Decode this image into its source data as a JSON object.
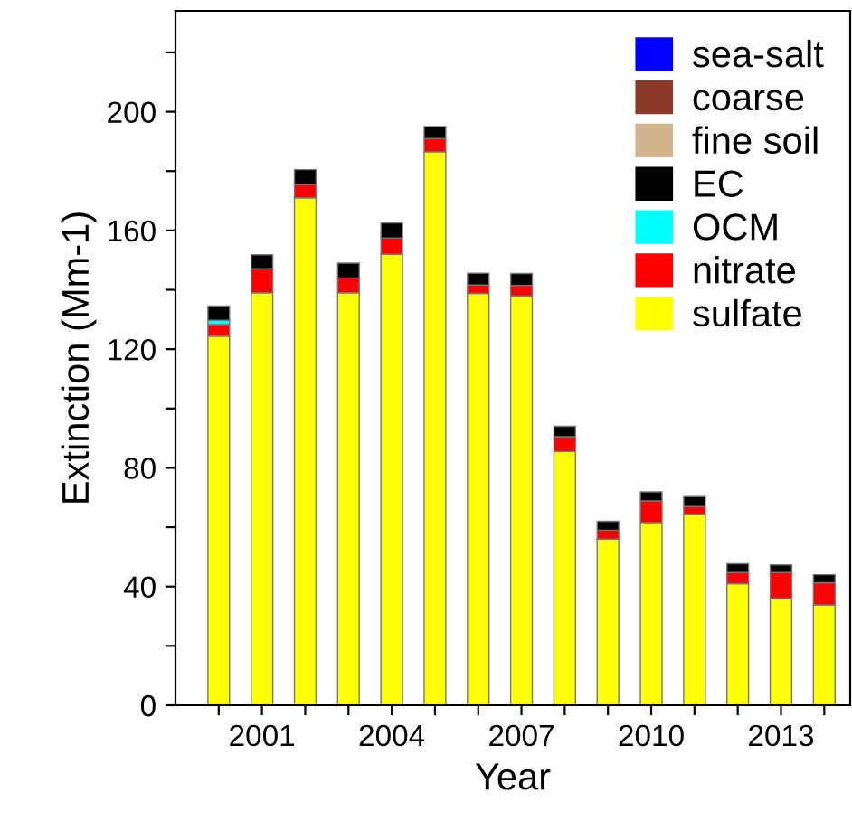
{
  "chart_data": {
    "type": "bar",
    "stacked": true,
    "xlabel": "Year",
    "ylabel": "Extinction (Mm-1)",
    "x": [
      2000,
      2001,
      2002,
      2003,
      2004,
      2005,
      2006,
      2007,
      2008,
      2009,
      2010,
      2011,
      2012,
      2013,
      2014
    ],
    "series": [
      {
        "name": "sulfate",
        "color": "#ffff00",
        "values": [
          124.4,
          139,
          171,
          139,
          152,
          186.5,
          138.8,
          138,
          85.5,
          56,
          61.6,
          64.2,
          41,
          36,
          33.8
        ]
      },
      {
        "name": "nitrate",
        "color": "#ff0000",
        "values": [
          3.9,
          8.1,
          4.5,
          5,
          5.5,
          4.5,
          2.8,
          3.5,
          5,
          3,
          7.3,
          2.8,
          3.7,
          8.7,
          7.5
        ]
      },
      {
        "name": "OCM",
        "color": "#00ffff",
        "values": [
          1.4,
          null,
          null,
          null,
          null,
          null,
          null,
          null,
          null,
          null,
          null,
          null,
          null,
          null,
          null
        ]
      },
      {
        "name": "EC",
        "color": "#000000",
        "values": [
          4.8,
          4.7,
          5,
          5,
          5,
          4,
          4,
          4,
          3.5,
          3,
          3,
          3.3,
          3,
          2.6,
          2.7
        ]
      },
      {
        "name": "fine soil",
        "color": "#d2b48c",
        "values": [
          null,
          null,
          null,
          null,
          null,
          null,
          null,
          null,
          null,
          null,
          null,
          null,
          null,
          null,
          null
        ]
      },
      {
        "name": "coarse",
        "color": "#8b3a2a",
        "values": [
          null,
          null,
          null,
          null,
          null,
          null,
          null,
          null,
          null,
          null,
          null,
          null,
          null,
          null,
          null
        ]
      },
      {
        "name": "sea-salt",
        "color": "#0000ff",
        "values": [
          null,
          null,
          null,
          null,
          null,
          null,
          null,
          null,
          null,
          null,
          null,
          null,
          null,
          null,
          null
        ]
      }
    ],
    "xlim": [
      1999,
      2014.6
    ],
    "xticks": [
      {
        "value": 2000,
        "label": null
      },
      2001,
      {
        "value": 2002,
        "label": null
      },
      {
        "value": 2003,
        "label": null
      },
      2004,
      {
        "value": 2005,
        "label": null
      },
      {
        "value": 2006,
        "label": null
      },
      2007,
      {
        "value": 2008,
        "label": null
      },
      {
        "value": 2009,
        "label": null
      },
      2010,
      {
        "value": 2011,
        "label": null
      },
      {
        "value": 2012,
        "label": null
      },
      2013,
      {
        "value": 2014,
        "label": null
      }
    ],
    "ylim": [
      0,
      234
    ],
    "yticks": [
      0,
      {
        "value": 20,
        "label": null
      },
      40,
      {
        "value": 60,
        "label": null
      },
      80,
      {
        "value": 100,
        "label": null
      },
      120,
      {
        "value": 140,
        "label": null
      },
      160,
      {
        "value": 180,
        "label": null
      },
      200,
      {
        "value": 220,
        "label": null
      }
    ],
    "legend": "top right",
    "grid": false
  }
}
